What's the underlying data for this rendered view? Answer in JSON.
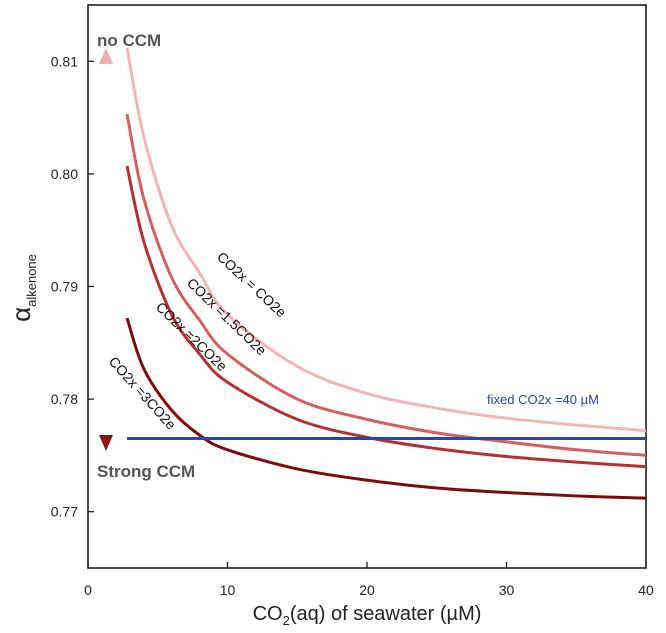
{
  "chart_data": {
    "type": "line",
    "xlabel_main": "CO",
    "xlabel_sub": "2",
    "xlabel_rest": "(aq) of seawater (µM)",
    "ylabel_main": "α",
    "ylabel_sub": "alkenone",
    "xlim": [
      0,
      40
    ],
    "ylim": [
      0.765,
      0.815
    ],
    "xticks": [
      0,
      10,
      20,
      30,
      40
    ],
    "xtick_labels": [
      "0",
      "10",
      "20",
      "30",
      "40"
    ],
    "yticks": [
      0.77,
      0.78,
      0.79,
      0.8,
      0.81
    ],
    "ytick_labels": [
      "0.77",
      "0.78",
      "0.79",
      "0.80",
      "0.81"
    ],
    "series": [
      {
        "name": "CO2x = CO2e",
        "color": "#f2b6b6",
        "x": [
          2.8,
          4,
          6,
          8,
          10,
          15,
          20,
          25,
          30,
          35,
          40
        ],
        "y": [
          0.8112,
          0.8033,
          0.7954,
          0.7912,
          0.7875,
          0.7829,
          0.7805,
          0.7792,
          0.7783,
          0.7777,
          0.7772
        ]
      },
      {
        "name": "CO2x =1.5CO2e",
        "color": "#d26060",
        "x": [
          2.8,
          4,
          6,
          8,
          10,
          15,
          20,
          25,
          30,
          35,
          40
        ],
        "y": [
          0.8053,
          0.7978,
          0.7908,
          0.787,
          0.784,
          0.78,
          0.7782,
          0.777,
          0.7762,
          0.7755,
          0.775
        ]
      },
      {
        "name": "CO2x =2CO2e",
        "color": "#b43232",
        "x": [
          2.8,
          4,
          6,
          8,
          10,
          15,
          20,
          25,
          30,
          35,
          40
        ],
        "y": [
          0.8007,
          0.794,
          0.7875,
          0.784,
          0.7815,
          0.7782,
          0.7766,
          0.7756,
          0.7749,
          0.7744,
          0.774
        ]
      },
      {
        "name": "CO2x =3CO2e",
        "color": "#7c0c0c",
        "x": [
          2.8,
          4,
          6,
          8,
          10,
          15,
          20,
          25,
          30,
          35,
          40
        ],
        "y": [
          0.7872,
          0.7827,
          0.779,
          0.7768,
          0.7755,
          0.7738,
          0.7728,
          0.7721,
          0.7717,
          0.7714,
          0.7712
        ]
      },
      {
        "name": "fixed CO2x =40 µM",
        "color": "#2b44a8",
        "x": [
          2.8,
          40
        ],
        "y": [
          0.7765,
          0.7765
        ]
      }
    ],
    "annotations": {
      "top": "no CCM",
      "bottom": "Strong CCM",
      "arrow_top_color": "#f2b0b0",
      "arrow_bottom_color": "#8b1212"
    }
  }
}
